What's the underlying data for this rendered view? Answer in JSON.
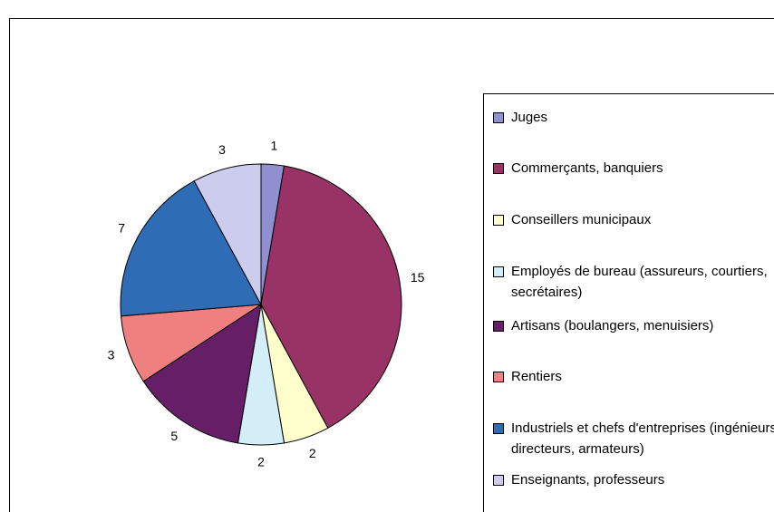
{
  "chart_data": {
    "type": "pie",
    "categories": [
      "Juges",
      "Commerçants, banquiers",
      "Conseillers municipaux",
      "Employés de bureau (assureurs, courtiers, secrétaires)",
      "Artisans (boulangers, menuisiers)",
      "Rentiers",
      "Industriels et chefs d'entreprises (ingénieurs, directeurs, armateurs)",
      "Enseignants, professeurs"
    ],
    "values": [
      1,
      15,
      2,
      2,
      5,
      3,
      7,
      3
    ],
    "colors": [
      "#9090d0",
      "#993366",
      "#ffffcc",
      "#d3eef6",
      "#661f66",
      "#f08080",
      "#2e6cb6",
      "#ccccec"
    ]
  }
}
